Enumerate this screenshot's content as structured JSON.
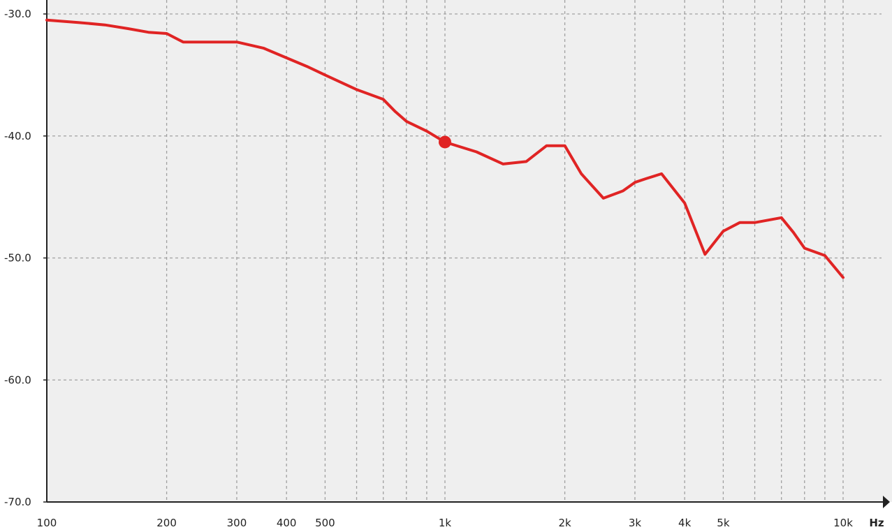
{
  "chart_data": {
    "type": "line",
    "title": "",
    "xlabel": "",
    "ylabel": "",
    "x_unit": "Hz",
    "x_scale": "log",
    "xlim": [
      100,
      10000
    ],
    "ylim": [
      -70,
      -30
    ],
    "grid": true,
    "legend": "none",
    "colors": {
      "background": "#efefef",
      "line": "#e02424",
      "grid": "#a0a0a0",
      "axis": "#222222"
    },
    "y_ticks": [
      {
        "value": -30,
        "label": "-30.0"
      },
      {
        "value": -40,
        "label": "-40.0"
      },
      {
        "value": -50,
        "label": "-50.0"
      },
      {
        "value": -60,
        "label": "-60.0"
      },
      {
        "value": -70,
        "label": "-70.0"
      }
    ],
    "x_ticks": [
      {
        "value": 100,
        "label": "100"
      },
      {
        "value": 200,
        "label": "200"
      },
      {
        "value": 300,
        "label": "300"
      },
      {
        "value": 400,
        "label": "400"
      },
      {
        "value": 500,
        "label": "500"
      },
      {
        "value": 1000,
        "label": "1k"
      },
      {
        "value": 2000,
        "label": "2k"
      },
      {
        "value": 3000,
        "label": "3k"
      },
      {
        "value": 4000,
        "label": "4k"
      },
      {
        "value": 5000,
        "label": "5k"
      },
      {
        "value": 10000,
        "label": "10k"
      }
    ],
    "x_minor_grid": [
      600,
      700,
      800,
      900,
      6000,
      7000,
      8000,
      9000
    ],
    "series": [
      {
        "x": [
          100,
          120,
          140,
          160,
          180,
          200,
          220,
          250,
          300,
          350,
          400,
          450,
          500,
          600,
          700,
          750,
          800,
          900,
          1000,
          1200,
          1400,
          1600,
          1800,
          2000,
          2200,
          2500,
          2800,
          3000,
          3200,
          3500,
          4000,
          4500,
          5000,
          5500,
          6000,
          7000,
          7500,
          8000,
          9000,
          10000
        ],
        "y": [
          -30.5,
          -30.7,
          -30.9,
          -31.2,
          -31.5,
          -31.6,
          -32.3,
          -32.3,
          -32.3,
          -32.8,
          -33.6,
          -34.3,
          -35.0,
          -36.2,
          -37.0,
          -38.0,
          -38.8,
          -39.6,
          -40.5,
          -41.3,
          -42.3,
          -42.1,
          -40.8,
          -40.8,
          -43.1,
          -45.1,
          -44.5,
          -43.8,
          -43.5,
          -43.1,
          -45.5,
          -49.7,
          -47.8,
          -47.1,
          -47.1,
          -46.7,
          -47.9,
          -49.2,
          -49.8,
          -51.6
        ]
      }
    ],
    "marker": {
      "x": 1000,
      "y": -40.5
    }
  }
}
